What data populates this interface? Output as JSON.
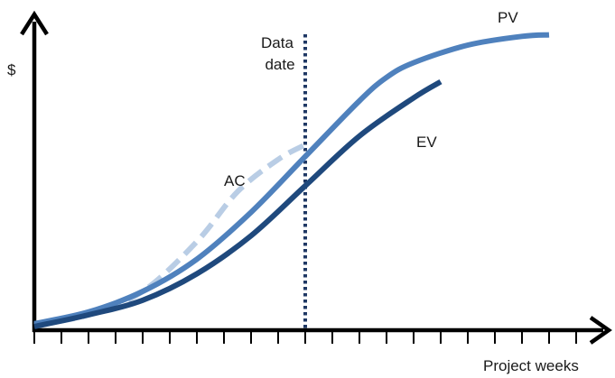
{
  "chart_data": {
    "type": "line",
    "title": "",
    "xlabel": "Project weeks",
    "ylabel": "$",
    "xlim": [
      0,
      20
    ],
    "ylim": [
      0,
      100
    ],
    "tick_count": 20,
    "data_date": {
      "x": 10,
      "label_line1": "Data",
      "label_line2": "date"
    },
    "series": [
      {
        "name": "PV",
        "color": "#4f81bd",
        "style": "solid",
        "points": [
          [
            0,
            1
          ],
          [
            2,
            5
          ],
          [
            4,
            12
          ],
          [
            6,
            23
          ],
          [
            8,
            39
          ],
          [
            10,
            58
          ],
          [
            12,
            77
          ],
          [
            13,
            85
          ],
          [
            14,
            90
          ],
          [
            16,
            96
          ],
          [
            18,
            99
          ],
          [
            19,
            99.5
          ]
        ]
      },
      {
        "name": "EV",
        "color": "#1f497d",
        "style": "solid",
        "points": [
          [
            0,
            0
          ],
          [
            2,
            4
          ],
          [
            4,
            9
          ],
          [
            6,
            18
          ],
          [
            8,
            31
          ],
          [
            10,
            48
          ],
          [
            12,
            65
          ],
          [
            14,
            78
          ],
          [
            15,
            83.5
          ]
        ]
      },
      {
        "name": "AC",
        "color": "#b9cde5",
        "style": "dashed",
        "points": [
          [
            0,
            0.5
          ],
          [
            2,
            4
          ],
          [
            4,
            12
          ],
          [
            6,
            29
          ],
          [
            7.5,
            46
          ],
          [
            9,
            57
          ],
          [
            10,
            62
          ]
        ]
      }
    ]
  }
}
